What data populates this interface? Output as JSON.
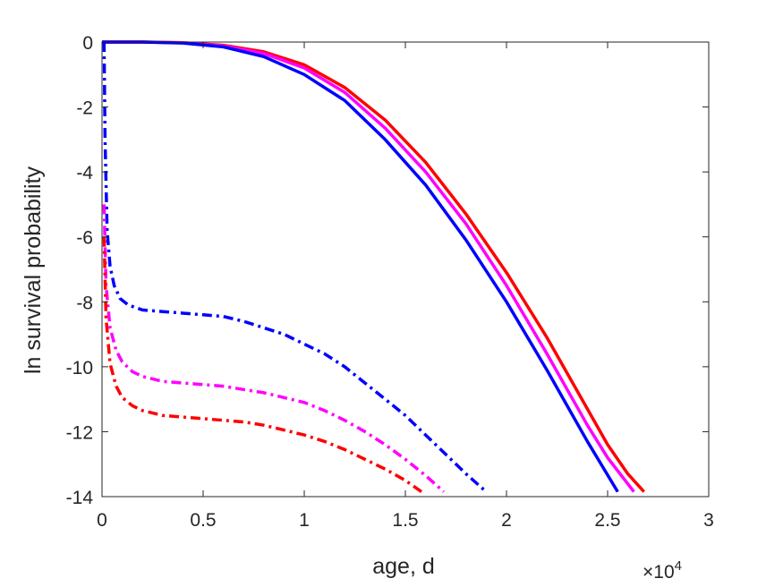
{
  "chart_data": {
    "type": "line",
    "title": "",
    "xlabel": "age, d",
    "ylabel": "ln survival probability",
    "x_exponent_base": "×10",
    "x_exponent_power": "4",
    "xlim": [
      0,
      30000
    ],
    "ylim": [
      -14,
      0
    ],
    "grid": false,
    "legend": "none",
    "x_ticks": [
      {
        "value": 0,
        "label": "0"
      },
      {
        "value": 5000,
        "label": "0.5"
      },
      {
        "value": 10000,
        "label": "1"
      },
      {
        "value": 15000,
        "label": "1.5"
      },
      {
        "value": 20000,
        "label": "2"
      },
      {
        "value": 25000,
        "label": "2.5"
      },
      {
        "value": 30000,
        "label": "3"
      }
    ],
    "y_ticks": [
      {
        "value": 0,
        "label": "0"
      },
      {
        "value": -2,
        "label": "-2"
      },
      {
        "value": -4,
        "label": "-4"
      },
      {
        "value": -6,
        "label": "-6"
      },
      {
        "value": -8,
        "label": "-8"
      },
      {
        "value": -10,
        "label": "-10"
      },
      {
        "value": -12,
        "label": "-12"
      },
      {
        "value": -14,
        "label": "-14"
      }
    ],
    "series": [
      {
        "color": "#ff0000",
        "style": "solid",
        "x": [
          0,
          2000,
          4000,
          6000,
          8000,
          10000,
          12000,
          14000,
          16000,
          18000,
          20000,
          22000,
          24000,
          25000,
          26000,
          26800
        ],
        "y": [
          0,
          0,
          -0.02,
          -0.1,
          -0.3,
          -0.7,
          -1.4,
          -2.4,
          -3.7,
          -5.3,
          -7.1,
          -9.1,
          -11.3,
          -12.4,
          -13.3,
          -13.85
        ]
      },
      {
        "color": "#ff00ff",
        "style": "solid",
        "x": [
          0,
          2000,
          4000,
          6000,
          8000,
          10000,
          12000,
          14000,
          16000,
          18000,
          20000,
          22000,
          24000,
          25000,
          26300
        ],
        "y": [
          0,
          0,
          -0.02,
          -0.12,
          -0.35,
          -0.8,
          -1.55,
          -2.65,
          -4.0,
          -5.6,
          -7.5,
          -9.6,
          -11.8,
          -12.8,
          -13.85
        ]
      },
      {
        "color": "#0000ff",
        "style": "solid",
        "x": [
          0,
          2000,
          4000,
          6000,
          8000,
          10000,
          12000,
          14000,
          16000,
          18000,
          20000,
          22000,
          24000,
          25500
        ],
        "y": [
          0,
          0,
          -0.03,
          -0.15,
          -0.45,
          -1.0,
          -1.8,
          -3.0,
          -4.4,
          -6.1,
          -8.0,
          -10.1,
          -12.3,
          -13.85
        ]
      },
      {
        "color": "#0000ff",
        "style": "dashdot",
        "x": [
          100,
          150,
          250,
          400,
          600,
          900,
          1300,
          2000,
          3000,
          4000,
          5000,
          6000,
          7000,
          8000,
          9000,
          10000,
          11000,
          12000,
          13000,
          14000,
          15000,
          16000,
          17000,
          18000,
          19000
        ],
        "y": [
          0,
          -3.0,
          -5.8,
          -6.9,
          -7.5,
          -7.9,
          -8.1,
          -8.25,
          -8.3,
          -8.35,
          -8.4,
          -8.45,
          -8.6,
          -8.8,
          -9.0,
          -9.3,
          -9.6,
          -10.0,
          -10.5,
          -11.0,
          -11.5,
          -12.1,
          -12.7,
          -13.3,
          -13.85
        ]
      },
      {
        "color": "#ff00ff",
        "style": "dashdot",
        "x": [
          100,
          200,
          400,
          700,
          1000,
          1500,
          2000,
          3000,
          4000,
          5000,
          6000,
          7000,
          8000,
          9000,
          10000,
          11000,
          12000,
          13000,
          14000,
          15000,
          16000,
          16900
        ],
        "y": [
          -5.0,
          -7.5,
          -8.8,
          -9.5,
          -9.85,
          -10.15,
          -10.3,
          -10.45,
          -10.5,
          -10.55,
          -10.6,
          -10.7,
          -10.8,
          -10.95,
          -11.1,
          -11.35,
          -11.65,
          -12.0,
          -12.4,
          -12.85,
          -13.35,
          -13.85
        ]
      },
      {
        "color": "#ff0000",
        "style": "dashdot",
        "x": [
          100,
          200,
          400,
          700,
          1000,
          1500,
          2000,
          3000,
          4000,
          5000,
          6000,
          7000,
          8000,
          9000,
          10000,
          11000,
          12000,
          13000,
          14000,
          15000,
          15800
        ],
        "y": [
          -6.0,
          -8.5,
          -9.9,
          -10.6,
          -10.95,
          -11.2,
          -11.35,
          -11.5,
          -11.55,
          -11.6,
          -11.65,
          -11.7,
          -11.8,
          -11.95,
          -12.1,
          -12.3,
          -12.55,
          -12.85,
          -13.15,
          -13.5,
          -13.85
        ]
      }
    ]
  }
}
